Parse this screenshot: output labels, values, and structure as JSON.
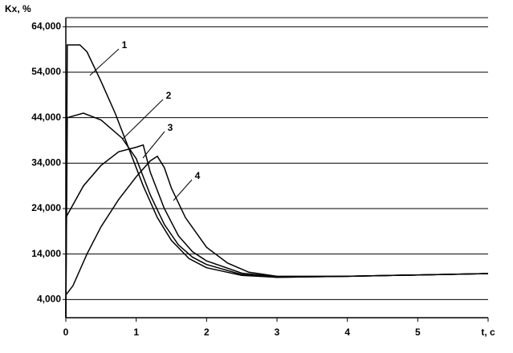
{
  "chart_data": {
    "type": "line",
    "y_label": "Kx, %",
    "xlim": [
      0,
      6
    ],
    "xticks": [
      0,
      1,
      2,
      3,
      4,
      5,
      {
        "value": 6,
        "label": "t, c"
      }
    ],
    "ylim": [
      0,
      66000
    ],
    "yticks": [
      {
        "value": 4000,
        "label": "4,000"
      },
      {
        "value": 14000,
        "label": "14,000"
      },
      {
        "value": 24000,
        "label": "24,000"
      },
      {
        "value": 34000,
        "label": "34,000"
      },
      {
        "value": 44000,
        "label": "44,000"
      },
      {
        "value": 54000,
        "label": "54,000"
      },
      {
        "value": 64000,
        "label": "64,000"
      }
    ],
    "grid": true,
    "series": [
      {
        "name": "1",
        "color": "#000000",
        "x": [
          0,
          0.02,
          0.2,
          0.3,
          0.5,
          0.7,
          0.9,
          1.1,
          1.3,
          1.5,
          1.75,
          2,
          2.5,
          3,
          4,
          5,
          6
        ],
        "values": [
          0,
          60000,
          60000,
          58500,
          52000,
          45000,
          37000,
          29000,
          22000,
          17000,
          13000,
          11000,
          9300,
          8900,
          9100,
          9400,
          9700
        ]
      },
      {
        "name": "2",
        "color": "#000000",
        "x": [
          0,
          0.02,
          0.25,
          0.5,
          0.8,
          1.0,
          1.2,
          1.4,
          1.6,
          1.8,
          2,
          2.5,
          3,
          4,
          5,
          6
        ],
        "values": [
          0,
          44000,
          45000,
          43500,
          39500,
          35000,
          27000,
          20500,
          16000,
          13300,
          11700,
          9500,
          8900,
          9100,
          9400,
          9700
        ]
      },
      {
        "name": "3",
        "color": "#000000",
        "x": [
          0,
          0.25,
          0.5,
          0.75,
          1.0,
          1.1,
          1.2,
          1.4,
          1.6,
          1.8,
          2,
          2.5,
          3,
          4,
          5,
          6
        ],
        "values": [
          22000,
          29000,
          33500,
          36500,
          37500,
          38000,
          32000,
          24000,
          18000,
          14500,
          12500,
          9800,
          9000,
          9100,
          9400,
          9700
        ]
      },
      {
        "name": "4",
        "color": "#000000",
        "x": [
          0,
          0.1,
          0.3,
          0.5,
          0.75,
          1.0,
          1.2,
          1.3,
          1.4,
          1.5,
          1.7,
          2.0,
          2.3,
          2.6,
          3,
          4,
          5,
          6
        ],
        "values": [
          5000,
          7000,
          14000,
          20000,
          26000,
          31000,
          34500,
          35500,
          33000,
          28500,
          22000,
          15500,
          12000,
          10000,
          9100,
          9100,
          9400,
          9700
        ]
      }
    ]
  }
}
